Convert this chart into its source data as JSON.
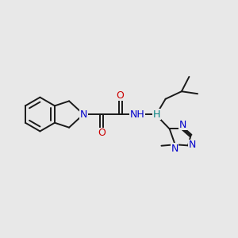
{
  "bg_color": "#e8e8e8",
  "bond_color": "#1a1a1a",
  "bond_width": 1.4,
  "atom_colors": {
    "N": "#0000cc",
    "O": "#cc0000",
    "H": "#008080",
    "C": "#1a1a1a"
  },
  "font_size": 8.5,
  "figsize": [
    3.0,
    3.0
  ],
  "dpi": 100
}
